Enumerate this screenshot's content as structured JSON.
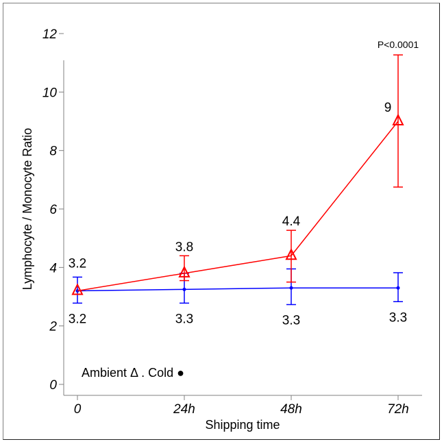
{
  "chart_data": {
    "type": "line",
    "title": "",
    "xlabel": "Shipping time",
    "ylabel": "Lymphocyte / Monocyte Ratio",
    "categories": [
      "0",
      "24h",
      "48h",
      "72h"
    ],
    "x": [
      0,
      24,
      48,
      72
    ],
    "xlim": [
      -2,
      77
    ],
    "ylim": [
      -0.4,
      12.4
    ],
    "yticks": [
      0,
      2,
      4,
      6,
      8,
      10,
      12
    ],
    "ytick_labels": [
      "0",
      "2",
      "4",
      "6",
      "8",
      "10",
      "12"
    ],
    "grid": false,
    "series": [
      {
        "name": "Ambient",
        "marker": "triangle-open",
        "color": "#ff0000",
        "values": [
          3.2,
          3.8,
          4.4,
          9.0
        ],
        "error_low": [
          3.2,
          3.55,
          3.5,
          6.75
        ],
        "error_high": [
          3.2,
          4.4,
          5.27,
          11.27
        ],
        "labels": [
          "3.2",
          "3.8",
          "4.4",
          "9"
        ],
        "label_position": "above"
      },
      {
        "name": "Cold",
        "marker": "dot",
        "color": "#0000ff",
        "values": [
          3.2,
          3.25,
          3.3,
          3.3
        ],
        "error_low": [
          2.78,
          2.78,
          2.73,
          2.83
        ],
        "error_high": [
          3.67,
          3.8,
          3.95,
          3.82
        ],
        "labels": [
          "3.2",
          "3.3",
          "3.3",
          "3.3"
        ],
        "label_position": "below"
      }
    ],
    "annotations": [
      {
        "text": "P<0.0001",
        "x": 72,
        "y": 11.27,
        "position": "above"
      }
    ],
    "legend": {
      "text": "Ambient Δ . Cold ●",
      "placement": "bottom-left-inside"
    }
  }
}
